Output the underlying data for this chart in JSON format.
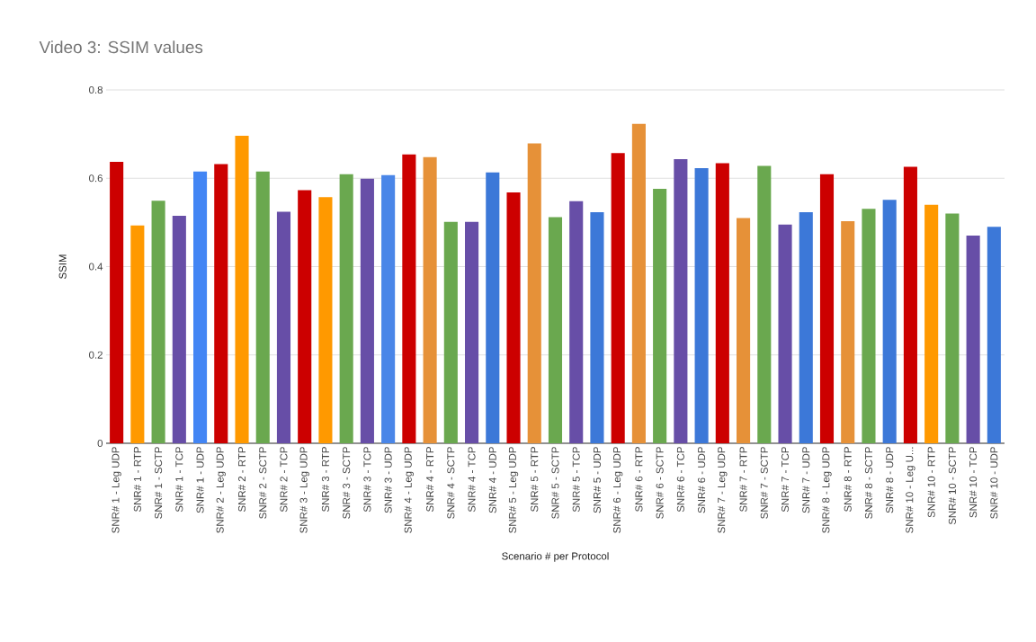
{
  "chart_data": {
    "type": "bar",
    "title": "Video 3: SSIM values",
    "xlabel": "Scenario # per Protocol",
    "ylabel": "SSIM",
    "categories": [
      "SNR# 1 - Leg UDP",
      "SNR# 1 - RTP",
      "SNR# 1 - SCTP",
      "SNR# 1 - TCP",
      "SNR# 1 - UDP",
      "SNR# 2 - Leg UDP",
      "SNR# 2 - RTP",
      "SNR# 2 - SCTP",
      "SNR# 2 - TCP",
      "SNR# 3 - Leg UDP",
      "SNR# 3 - RTP",
      "SNR# 3 - SCTP",
      "SNR# 3 - TCP",
      "SNR# 3 - UDP",
      "SNR# 4 - Leg UDP",
      "SNR# 4 - RTP",
      "SNR# 4 - SCTP",
      "SNR# 4 - TCP",
      "SNR# 4 - UDP",
      "SNR# 5 - Leg UDP",
      "SNR# 5 - RTP",
      "SNR# 5 - SCTP",
      "SNR# 5 - TCP",
      "SNR# 5 - UDP",
      "SNR# 6 - Leg UDP",
      "SNR# 6 - RTP",
      "SNR# 6 - SCTP",
      "SNR# 6 - TCP",
      "SNR# 6 - UDP",
      "SNR# 7 - Leg UDP",
      "SNR# 7 - RTP",
      "SNR# 7 - SCTP",
      "SNR# 7 - TCP",
      "SNR# 7 - UDP",
      "SNR# 8 - Leg UDP",
      "SNR# 8 - RTP",
      "SNR# 8 - SCTP",
      "SNR# 8 - UDP",
      "SNR# 10 - Leg U...",
      "SNR# 10 - RTP",
      "SNR# 10 - SCTP",
      "SNR# 10 - TCP",
      "SNR# 10 - UDP"
    ],
    "values": [
      0.637,
      0.493,
      0.549,
      0.515,
      0.615,
      0.632,
      0.696,
      0.615,
      0.524,
      0.573,
      0.557,
      0.609,
      0.599,
      0.607,
      0.654,
      0.648,
      0.501,
      0.501,
      0.613,
      0.568,
      0.679,
      0.512,
      0.548,
      0.523,
      0.657,
      0.723,
      0.576,
      0.643,
      0.623,
      0.634,
      0.51,
      0.628,
      0.495,
      0.523,
      0.609,
      0.503,
      0.531,
      0.551,
      0.626,
      0.54,
      0.52,
      0.47,
      0.49
    ],
    "colors": [
      "#cc0000",
      "#ff9900",
      "#6aa84f",
      "#674ea7",
      "#4285f4",
      "#cc0000",
      "#ff9900",
      "#6aa84f",
      "#674ea7",
      "#cc0000",
      "#ff9900",
      "#6aa84f",
      "#674ea7",
      "#4a86e8",
      "#cc0000",
      "#e69138",
      "#6aa84f",
      "#674ea7",
      "#3c78d8",
      "#cc0000",
      "#e69138",
      "#6aa84f",
      "#674ea7",
      "#3c78d8",
      "#cc0000",
      "#e69138",
      "#6aa84f",
      "#674ea7",
      "#3c78d8",
      "#cc0000",
      "#e69138",
      "#6aa84f",
      "#674ea7",
      "#3c78d8",
      "#cc0000",
      "#e69138",
      "#6aa84f",
      "#3c78d8",
      "#cc0000",
      "#ff9900",
      "#6aa84f",
      "#674ea7",
      "#3c78d8"
    ],
    "ylim": [
      0,
      0.8
    ],
    "yticks": [
      0,
      0.2,
      0.4,
      0.6,
      0.8
    ],
    "grid": "y"
  }
}
